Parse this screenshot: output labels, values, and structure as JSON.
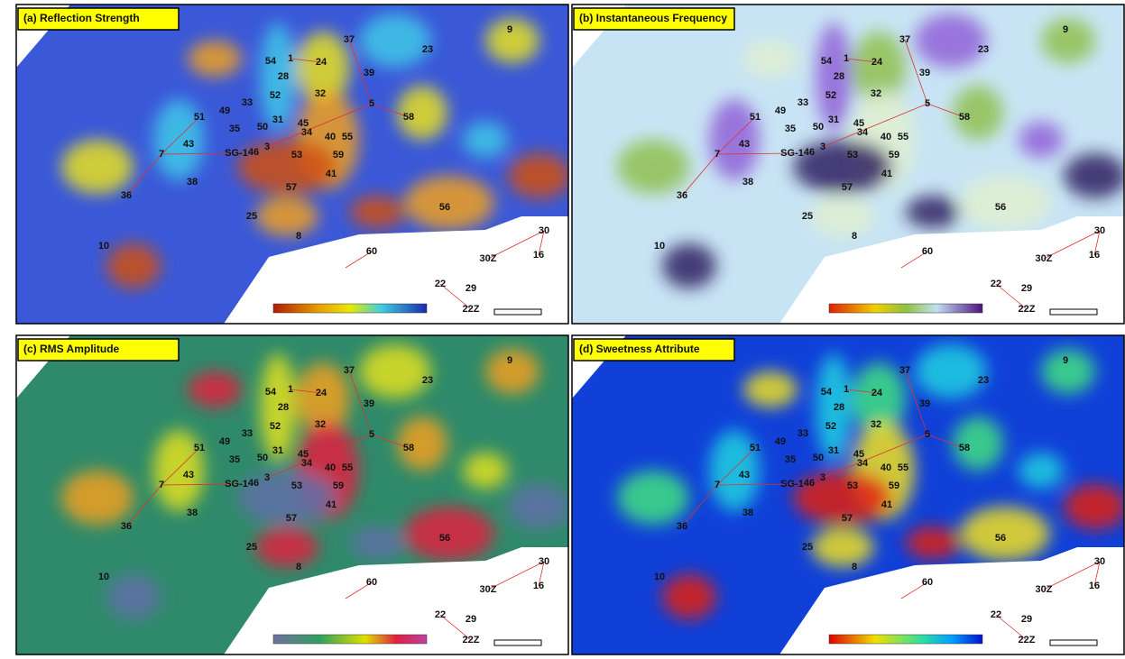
{
  "panels": [
    {
      "title": "(a) Reflection Strength"
    },
    {
      "title": "(b) Instantaneous Frequency"
    },
    {
      "title": "(c) RMS Amplitude"
    },
    {
      "title": "(d) Sweetness Attribute"
    }
  ],
  "wells": [
    "37",
    "23",
    "9",
    "54",
    "1",
    "24",
    "28",
    "39",
    "52",
    "32",
    "33",
    "49",
    "5",
    "51",
    "31",
    "58",
    "50",
    "45",
    "35",
    "34",
    "40",
    "55",
    "3",
    "43",
    "7",
    "SG-1",
    "46",
    "53",
    "59",
    "38",
    "41",
    "57",
    "36",
    "25",
    "56",
    "8",
    "10",
    "60",
    "30",
    "30Z",
    "16",
    "22",
    "29",
    "22Z"
  ]
}
